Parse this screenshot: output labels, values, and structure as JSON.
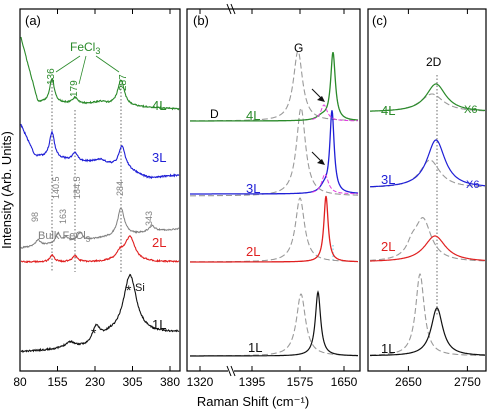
{
  "xlabel": "Raman Shift (cm⁻¹)",
  "ylabel": "Intensity (Arb. Units)",
  "colors": {
    "4L": "#2a8a2a",
    "3L": "#1f1fd6",
    "2L": "#e02020",
    "1L": "#111111",
    "bulk": "#808080",
    "ref": "#9a9a9a",
    "pink": "#e040e0"
  },
  "chart_data": [
    {
      "type": "line",
      "panel": "(a)",
      "xlim": [
        80,
        400
      ],
      "xticks": [
        80,
        155,
        230,
        305,
        380
      ],
      "traces": [
        "1L",
        "2L",
        "Bulk FeCl3",
        "3L",
        "4L"
      ],
      "labels": {
        "4L": "4L",
        "3L": "3L",
        "2L": "2L",
        "1L": "1L",
        "bulk": "Bulk FeCl",
        "bulk_sub": "3",
        "fecl": "FeCl",
        "fecl_sub": "3",
        "si": "Si",
        "star": "*"
      },
      "peak_labels_fecl3": [
        "136",
        "179",
        "287"
      ],
      "peak_labels_bulk": [
        "98",
        "140.5",
        "163",
        "184.5",
        "284",
        "343"
      ]
    },
    {
      "type": "line",
      "panel": "(b)",
      "xlim": [
        1320,
        1660
      ],
      "xticks": [
        1320,
        1395,
        1575,
        1650
      ],
      "axis_break": true,
      "labels": {
        "G": "G",
        "D": "D",
        "4L": "4L",
        "3L": "3L",
        "2L": "2L",
        "1L": "1L"
      },
      "G_peak_positions": {
        "1L": 1605,
        "2L": 1612,
        "3L": 1625,
        "4L": 1626,
        "reference": 1582
      }
    },
    {
      "type": "line",
      "panel": "(c)",
      "xlim": [
        2590,
        2810
      ],
      "xticks": [
        2650,
        2750
      ],
      "labels": {
        "2D": "2D",
        "4L": "4L",
        "3L": "3L",
        "2L": "2L",
        "1L": "1L",
        "x6_4L": "X6",
        "x6_3L": "X6"
      },
      "peak_line": 2710
    }
  ]
}
